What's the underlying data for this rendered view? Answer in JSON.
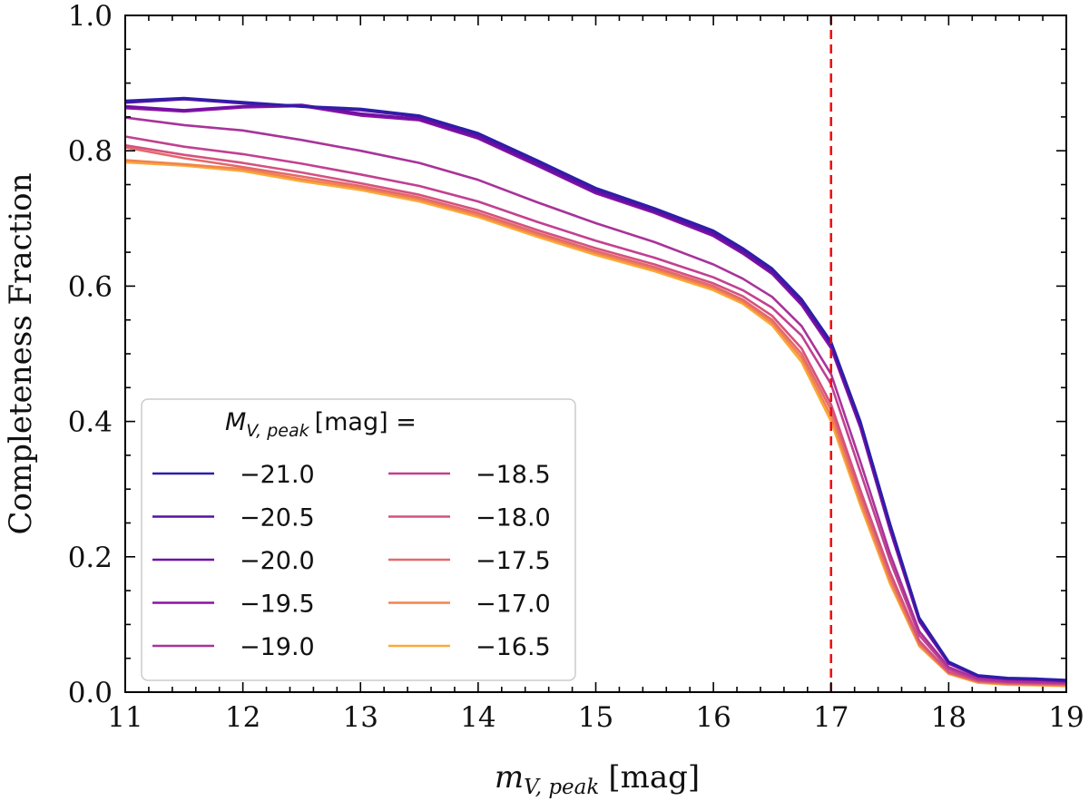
{
  "chart_data": {
    "type": "line",
    "title": "",
    "xlabel_main": "m",
    "xlabel_sub": "V, peak",
    "xlabel_unit": "[mag]",
    "ylabel": "Completeness Fraction",
    "xlim": [
      11,
      19
    ],
    "ylim": [
      0.0,
      1.0
    ],
    "xticks": [
      "11",
      "12",
      "13",
      "14",
      "15",
      "16",
      "17",
      "18",
      "19"
    ],
    "yticks": [
      "0.0",
      "0.2",
      "0.4",
      "0.6",
      "0.8",
      "1.0"
    ],
    "x_minor_step": 0.2,
    "y_minor_step": 0.05,
    "grid": false,
    "vline": {
      "x": 17.0,
      "color": "#ee1111",
      "style": "dashed"
    },
    "legend": {
      "placement": "lower-left",
      "ncol": 2,
      "title_main": "M",
      "title_sub": "V, peak",
      "title_rest": "[mag] ="
    },
    "x": [
      11.0,
      11.5,
      12.0,
      12.5,
      13.0,
      13.5,
      14.0,
      14.5,
      15.0,
      15.5,
      16.0,
      16.25,
      16.5,
      16.75,
      17.0,
      17.25,
      17.5,
      17.75,
      18.0,
      18.25,
      18.5,
      18.75,
      19.0
    ],
    "series": [
      {
        "name": "−21.0",
        "color": "#2a1fa8",
        "values": [
          0.874,
          0.878,
          0.872,
          0.866,
          0.862,
          0.852,
          0.826,
          0.786,
          0.745,
          0.715,
          0.682,
          0.656,
          0.626,
          0.581,
          0.518,
          0.4,
          0.25,
          0.11,
          0.045,
          0.025,
          0.021,
          0.02,
          0.018
        ]
      },
      {
        "name": "−20.5",
        "color": "#5312a4",
        "values": [
          0.871,
          0.876,
          0.87,
          0.865,
          0.86,
          0.85,
          0.823,
          0.783,
          0.742,
          0.712,
          0.679,
          0.653,
          0.623,
          0.578,
          0.515,
          0.397,
          0.247,
          0.108,
          0.044,
          0.024,
          0.02,
          0.019,
          0.017
        ]
      },
      {
        "name": "−20.0",
        "color": "#6f0fa6",
        "values": [
          0.866,
          0.86,
          0.866,
          0.868,
          0.855,
          0.847,
          0.82,
          0.78,
          0.739,
          0.71,
          0.676,
          0.65,
          0.62,
          0.575,
          0.512,
          0.394,
          0.244,
          0.106,
          0.043,
          0.024,
          0.02,
          0.019,
          0.017
        ]
      },
      {
        "name": "−19.5",
        "color": "#8a14a0",
        "values": [
          0.863,
          0.858,
          0.864,
          0.866,
          0.852,
          0.845,
          0.818,
          0.778,
          0.737,
          0.708,
          0.674,
          0.648,
          0.618,
          0.572,
          0.508,
          0.39,
          0.24,
          0.104,
          0.042,
          0.023,
          0.019,
          0.018,
          0.016
        ]
      },
      {
        "name": "−19.0",
        "color": "#a8339a",
        "values": [
          0.849,
          0.838,
          0.83,
          0.816,
          0.8,
          0.782,
          0.757,
          0.724,
          0.693,
          0.665,
          0.632,
          0.611,
          0.584,
          0.541,
          0.47,
          0.34,
          0.205,
          0.09,
          0.037,
          0.02,
          0.016,
          0.015,
          0.014
        ]
      },
      {
        "name": "−18.5",
        "color": "#c14190",
        "values": [
          0.821,
          0.806,
          0.795,
          0.781,
          0.765,
          0.748,
          0.725,
          0.695,
          0.667,
          0.642,
          0.613,
          0.594,
          0.568,
          0.527,
          0.455,
          0.325,
          0.195,
          0.084,
          0.034,
          0.018,
          0.015,
          0.014,
          0.013
        ]
      },
      {
        "name": "−18.0",
        "color": "#d4527f",
        "values": [
          0.808,
          0.794,
          0.782,
          0.768,
          0.752,
          0.735,
          0.712,
          0.683,
          0.656,
          0.632,
          0.604,
          0.585,
          0.556,
          0.508,
          0.425,
          0.298,
          0.178,
          0.076,
          0.03,
          0.017,
          0.014,
          0.013,
          0.012
        ]
      },
      {
        "name": "−17.5",
        "color": "#e4696b",
        "values": [
          0.805,
          0.789,
          0.776,
          0.762,
          0.748,
          0.731,
          0.708,
          0.679,
          0.652,
          0.628,
          0.6,
          0.58,
          0.55,
          0.5,
          0.417,
          0.29,
          0.172,
          0.073,
          0.029,
          0.016,
          0.013,
          0.012,
          0.011
        ]
      },
      {
        "name": "−17.0",
        "color": "#f2834f",
        "values": [
          0.786,
          0.78,
          0.773,
          0.758,
          0.745,
          0.728,
          0.705,
          0.676,
          0.649,
          0.625,
          0.597,
          0.577,
          0.546,
          0.494,
          0.408,
          0.282,
          0.166,
          0.07,
          0.028,
          0.015,
          0.012,
          0.011,
          0.01
        ]
      },
      {
        "name": "−16.5",
        "color": "#f9aa38",
        "values": [
          0.783,
          0.778,
          0.77,
          0.755,
          0.742,
          0.725,
          0.702,
          0.673,
          0.646,
          0.622,
          0.594,
          0.574,
          0.542,
          0.488,
          0.4,
          0.276,
          0.161,
          0.068,
          0.027,
          0.014,
          0.011,
          0.01,
          0.009
        ]
      }
    ]
  }
}
